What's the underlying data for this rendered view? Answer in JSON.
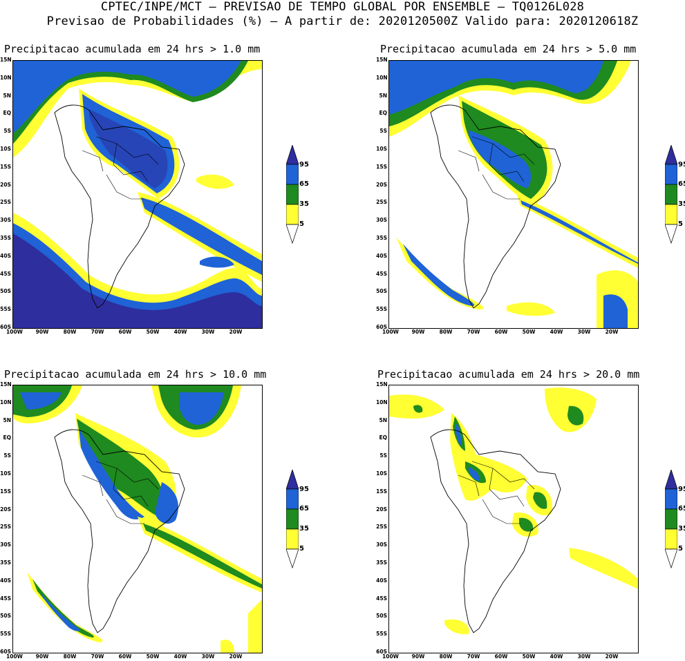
{
  "header": {
    "line1": "CPTEC/INPE/MCT — PREVISAO DE TEMPO GLOBAL POR ENSEMBLE — TQ0126L028",
    "line2": "Previsao de Probabilidades (%) —  A partir de: 2020120500Z  Valido para: 2020120618Z"
  },
  "axes": {
    "lat_labels": [
      "15N",
      "10N",
      "5N",
      "EQ",
      "5S",
      "10S",
      "15S",
      "20S",
      "25S",
      "30S",
      "35S",
      "40S",
      "45S",
      "50S",
      "55S",
      "60S"
    ],
    "lon_labels": [
      "100W",
      "90W",
      "80W",
      "70W",
      "60W",
      "50W",
      "40W",
      "30W",
      "20W"
    ]
  },
  "colorbar": {
    "labels": [
      "95",
      "65",
      "35",
      "5"
    ],
    "colors": {
      "c95": "#2e2e9e",
      "c65": "#1f63d6",
      "c35": "#1f8a1f",
      "c5": "#ffff33"
    }
  },
  "panels": [
    {
      "title": "Precipitacao acumulada em 24 hrs > 1.0 mm"
    },
    {
      "title": "Precipitacao acumulada em 24 hrs > 5.0 mm"
    },
    {
      "title": "Precipitacao acumulada em 24 hrs > 10.0 mm"
    },
    {
      "title": "Precipitacao acumulada em 24 hrs > 20.0 mm"
    }
  ]
}
